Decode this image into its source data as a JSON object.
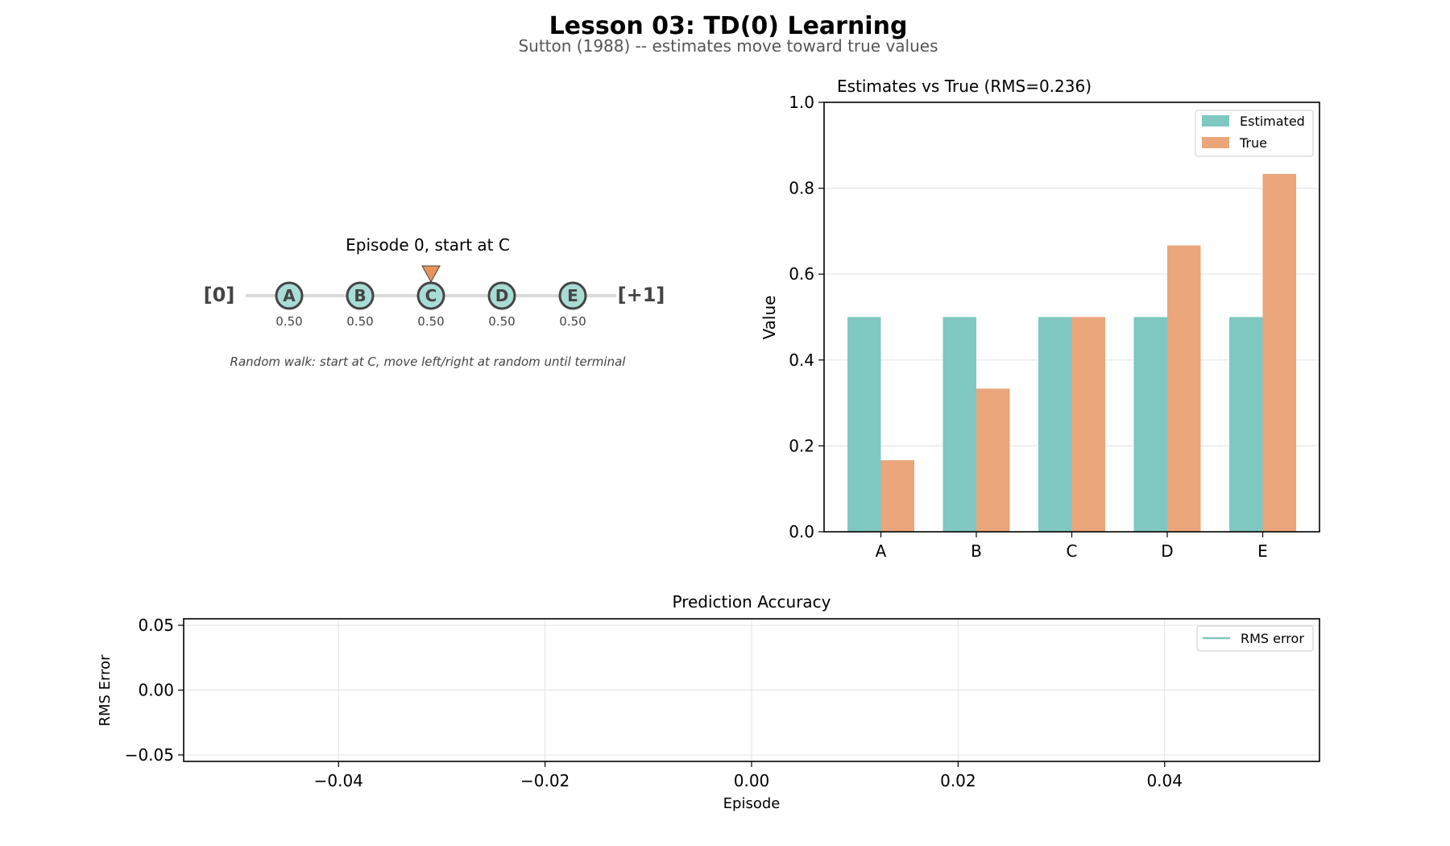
{
  "figure": {
    "title": "Lesson 03: TD(0) Learning",
    "subtitle": "Sutton (1988) -- estimates move toward true values"
  },
  "walk": {
    "episode_label": "Episode 0, start at C",
    "left_terminal": "[0]",
    "right_terminal": "[+1]",
    "states": [
      {
        "label": "A",
        "value": "0.50"
      },
      {
        "label": "B",
        "value": "0.50"
      },
      {
        "label": "C",
        "value": "0.50"
      },
      {
        "label": "D",
        "value": "0.50"
      },
      {
        "label": "E",
        "value": "0.50"
      }
    ],
    "current_state": "C",
    "caption": "Random walk: start at C, move left/right at random until terminal",
    "colors": {
      "node_fill": "#a8dcd4",
      "node_stroke": "#444444",
      "marker": "#e8935a",
      "track": "#d9d9d9"
    }
  },
  "chart_data": [
    {
      "type": "bar",
      "title": "Estimates vs True (RMS=0.236)",
      "xlabel": "",
      "ylabel": "Value",
      "categories": [
        "A",
        "B",
        "C",
        "D",
        "E"
      ],
      "series": [
        {
          "name": "Estimated",
          "color": "#7fc7c1",
          "values": [
            0.5,
            0.5,
            0.5,
            0.5,
            0.5
          ]
        },
        {
          "name": "True",
          "color": "#eaa57a",
          "values": [
            0.1667,
            0.3333,
            0.5,
            0.6667,
            0.8333
          ]
        }
      ],
      "ylim": [
        0,
        1.0
      ],
      "yticks": [
        "0.0",
        "0.2",
        "0.4",
        "0.6",
        "0.8",
        "1.0"
      ],
      "grid": "y",
      "legend": "top-right"
    },
    {
      "type": "line",
      "title": "Prediction Accuracy",
      "xlabel": "Episode",
      "ylabel": "RMS Error",
      "series": [
        {
          "name": "RMS error",
          "color": "#7fc7c1",
          "x": [],
          "y": []
        }
      ],
      "xlim": [
        -0.055,
        0.055
      ],
      "ylim": [
        -0.055,
        0.055
      ],
      "xticks": [
        "−0.04",
        "−0.02",
        "0.00",
        "0.02",
        "0.04"
      ],
      "yticks": [
        "−0.05",
        "0.00",
        "0.05"
      ],
      "grid": "both",
      "legend": "top-right"
    }
  ]
}
